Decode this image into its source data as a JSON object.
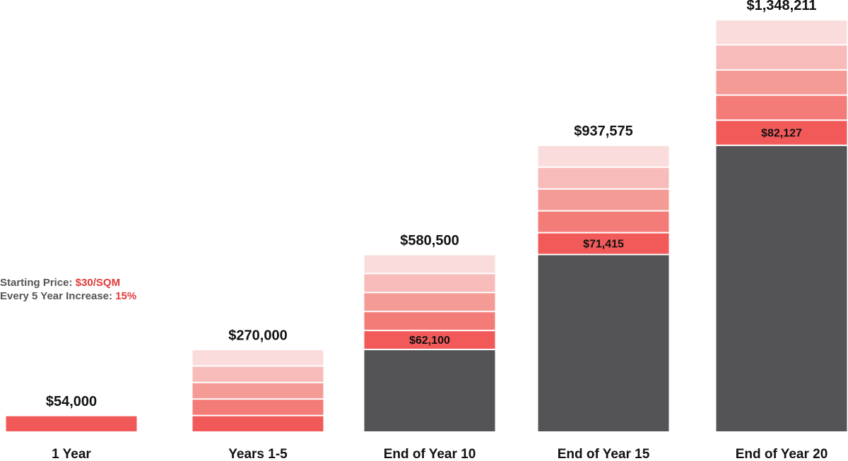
{
  "chart_data": {
    "type": "stacked-bar",
    "categories": [
      "1 Year",
      "Years 1-5",
      "End of Year 10",
      "End of Year 15",
      "End of Year 20"
    ],
    "series": [
      {
        "color": "#545456",
        "values": [
          null,
          null,
          270000,
          580500,
          937575
        ]
      },
      {
        "color": "#f25a5a",
        "values": [
          54000,
          54000,
          62100,
          71415,
          82127
        ],
        "value_labels": [
          null,
          null,
          "$62,100",
          "$71,415",
          "$82,127"
        ]
      },
      {
        "color": "#f47c78",
        "values": [
          null,
          54000,
          62100,
          71415,
          82127
        ]
      },
      {
        "color": "#f59b96",
        "values": [
          null,
          54000,
          62100,
          71415,
          82127
        ]
      },
      {
        "color": "#f7bcba",
        "values": [
          null,
          54000,
          62100,
          71415,
          82127
        ]
      },
      {
        "color": "#fbdcdc",
        "values": [
          null,
          54000,
          62100,
          71415,
          82127
        ]
      }
    ],
    "totals": [
      54000,
      270000,
      580500,
      937575,
      1348211
    ],
    "total_labels": [
      "$54,000",
      "$270,000",
      "$580,500",
      "$937,575",
      "$1,348,211"
    ],
    "annotations": [
      {
        "text": "Starting Price:",
        "highlight": "$30/SQM"
      },
      {
        "text": "Every 5 Year Increase:",
        "highlight": "15%"
      }
    ],
    "ylim": [
      0,
      1415000
    ]
  }
}
